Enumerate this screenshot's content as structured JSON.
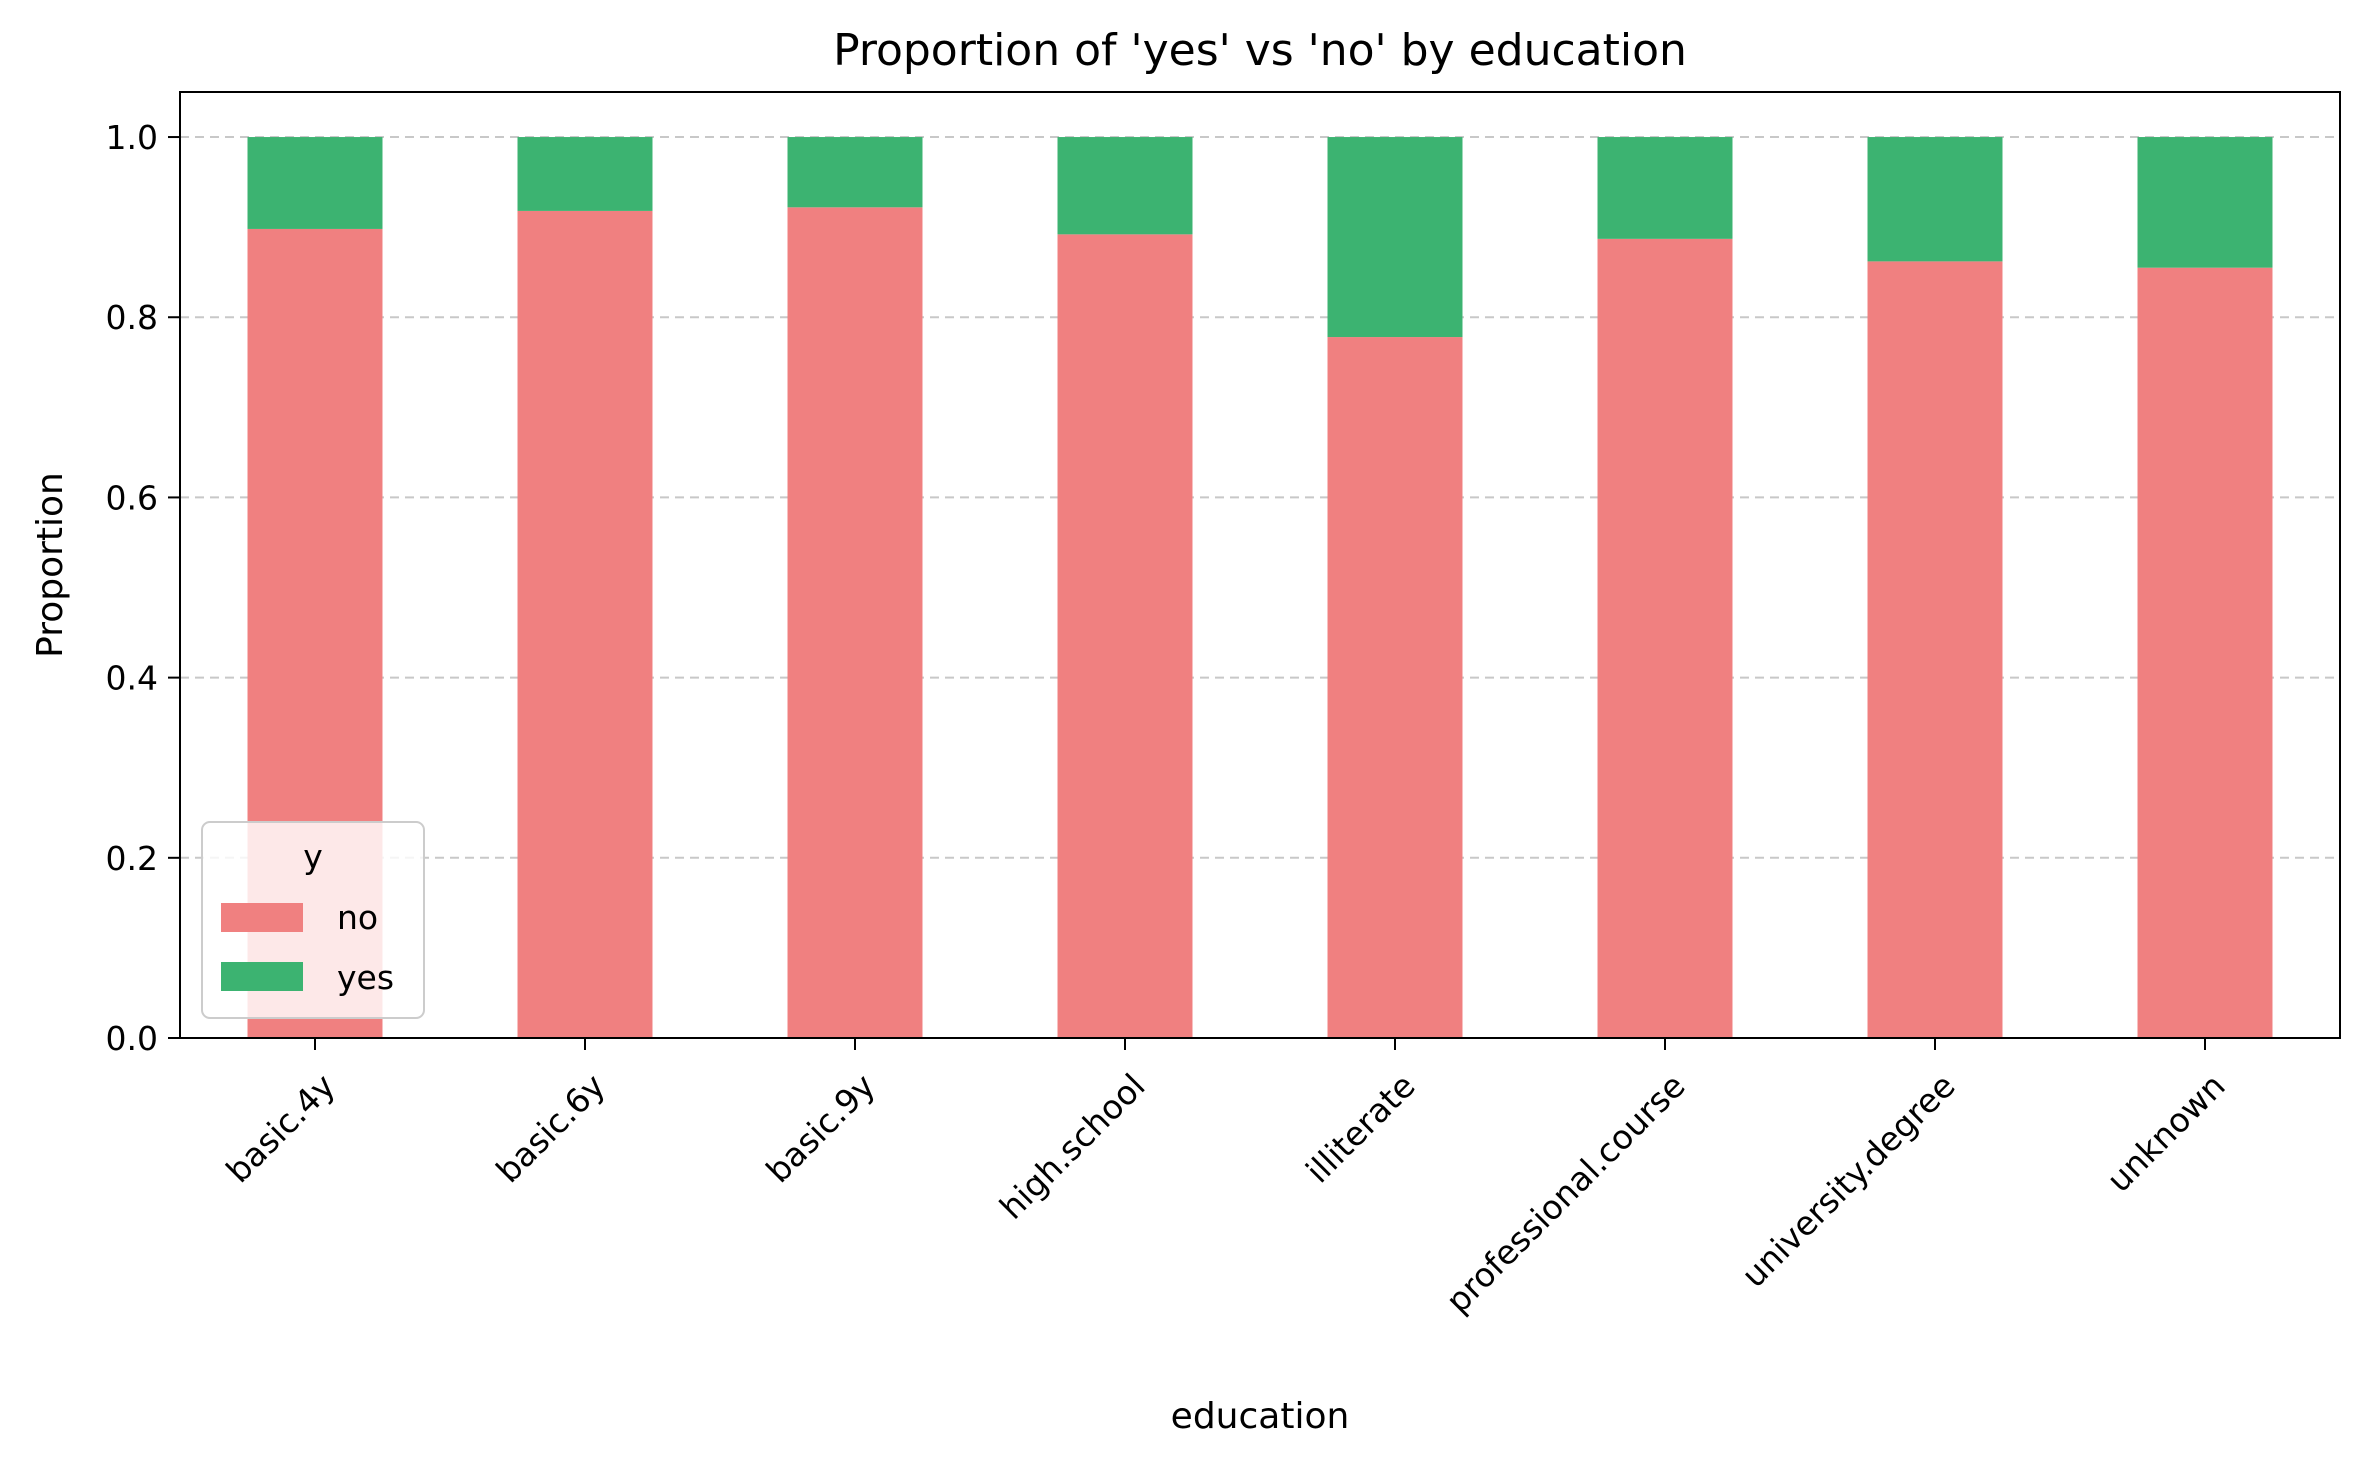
{
  "chart_data": {
    "type": "bar",
    "stacked": true,
    "title": "Proportion of 'yes' vs 'no' by education",
    "xlabel": "education",
    "ylabel": "Proportion",
    "ylim": [
      0,
      1.05
    ],
    "yticks": [
      "0.0",
      "0.2",
      "0.4",
      "0.6",
      "0.8",
      "1.0"
    ],
    "grid": "y-dashed",
    "legend": {
      "title": "y",
      "placement": "lower-left"
    },
    "categories": [
      "basic.4y",
      "basic.6y",
      "basic.9y",
      "high.school",
      "illiterate",
      "professional.course",
      "university.degree",
      "unknown"
    ],
    "series": [
      {
        "name": "no",
        "color": "#f08080",
        "values": [
          0.898,
          0.918,
          0.922,
          0.892,
          0.778,
          0.887,
          0.862,
          0.855
        ]
      },
      {
        "name": "yes",
        "color": "#3cb371",
        "values": [
          0.102,
          0.082,
          0.078,
          0.108,
          0.222,
          0.113,
          0.138,
          0.145
        ]
      }
    ]
  }
}
